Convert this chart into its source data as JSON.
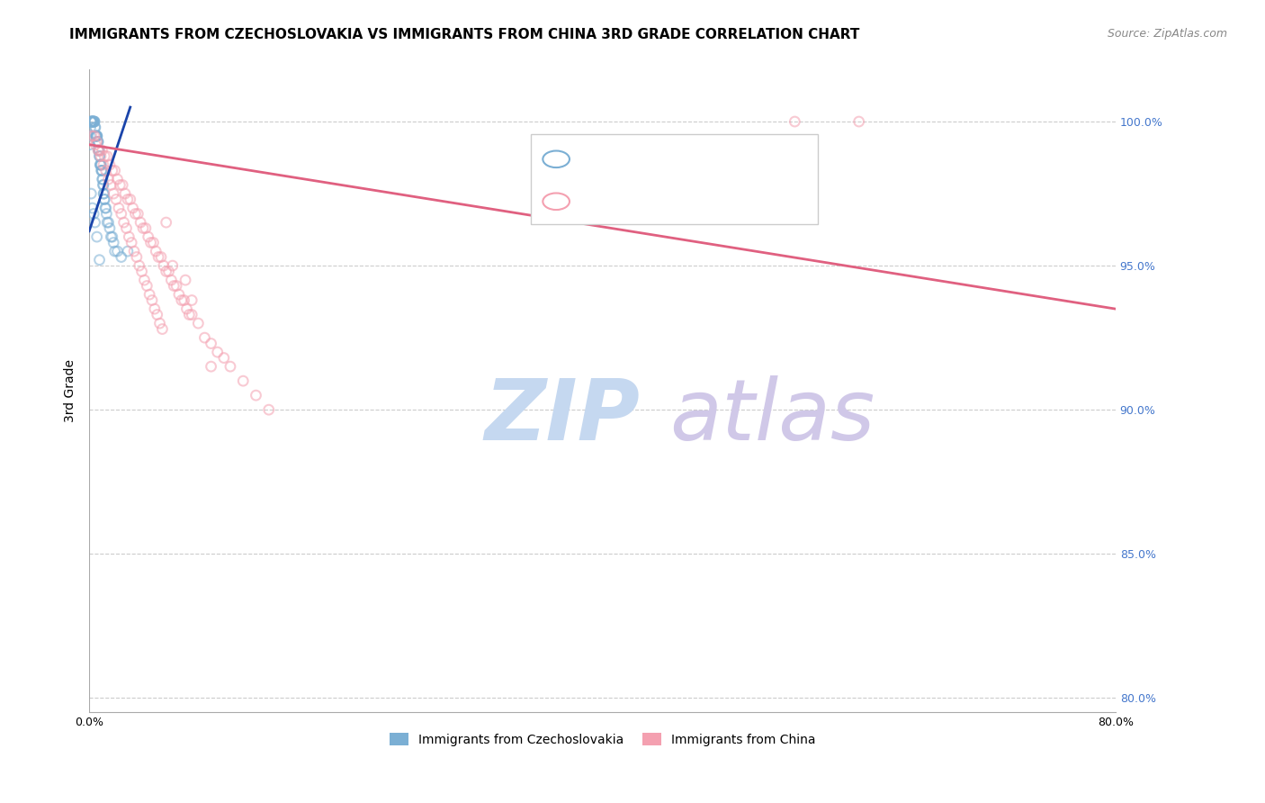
{
  "title": "IMMIGRANTS FROM CZECHOSLOVAKIA VS IMMIGRANTS FROM CHINA 3RD GRADE CORRELATION CHART",
  "source": "Source: ZipAtlas.com",
  "ylabel": "3rd Grade",
  "right_yticks": [
    80.0,
    85.0,
    90.0,
    95.0,
    100.0
  ],
  "xlim": [
    0.0,
    80.0
  ],
  "ylim": [
    79.5,
    101.8
  ],
  "blue_color": "#7bafd4",
  "pink_color": "#f4a0b0",
  "blue_edge_color": "#5599cc",
  "pink_edge_color": "#e87090",
  "blue_line_color": "#1a44aa",
  "pink_line_color": "#e06080",
  "watermark_ZIP": "ZIP",
  "watermark_atlas": "atlas",
  "watermark_color_ZIP": "#c5d8f0",
  "watermark_color_atlas": "#d0c8e8",
  "legend_label1": "Immigrants from Czechoslovakia",
  "legend_label2": "Immigrants from China",
  "blue_scatter_x": [
    0.05,
    0.08,
    0.1,
    0.12,
    0.15,
    0.18,
    0.2,
    0.22,
    0.25,
    0.28,
    0.3,
    0.32,
    0.35,
    0.38,
    0.4,
    0.42,
    0.45,
    0.48,
    0.5,
    0.52,
    0.55,
    0.58,
    0.6,
    0.62,
    0.65,
    0.68,
    0.7,
    0.72,
    0.75,
    0.78,
    0.8,
    0.82,
    0.85,
    0.88,
    0.9,
    0.92,
    0.95,
    0.98,
    1.0,
    1.02,
    1.05,
    1.08,
    1.1,
    1.12,
    1.15,
    1.18,
    1.2,
    1.25,
    1.3,
    1.35,
    1.4,
    1.5,
    1.6,
    1.7,
    1.8,
    1.9,
    2.0,
    2.2,
    2.5,
    3.0,
    0.15,
    0.25,
    0.35,
    0.45,
    0.6,
    0.8
  ],
  "blue_scatter_y": [
    99.2,
    99.5,
    99.8,
    100.0,
    100.0,
    100.0,
    100.0,
    100.0,
    100.0,
    100.0,
    100.0,
    100.0,
    100.0,
    100.0,
    100.0,
    100.0,
    99.8,
    99.8,
    99.5,
    99.5,
    99.5,
    99.5,
    99.5,
    99.5,
    99.3,
    99.3,
    99.3,
    99.0,
    99.0,
    99.0,
    98.8,
    98.8,
    98.5,
    98.5,
    98.5,
    98.5,
    98.3,
    98.3,
    98.3,
    98.0,
    98.0,
    97.8,
    97.8,
    97.5,
    97.5,
    97.3,
    97.3,
    97.0,
    97.0,
    96.8,
    96.5,
    96.5,
    96.3,
    96.0,
    96.0,
    95.8,
    95.5,
    95.5,
    95.3,
    95.5,
    97.5,
    97.0,
    96.8,
    96.5,
    96.0,
    95.2
  ],
  "pink_scatter_x": [
    0.2,
    0.4,
    0.6,
    0.8,
    1.0,
    1.2,
    1.4,
    1.6,
    1.8,
    2.0,
    2.2,
    2.4,
    2.6,
    2.8,
    3.0,
    3.2,
    3.4,
    3.6,
    3.8,
    4.0,
    4.2,
    4.4,
    4.6,
    4.8,
    5.0,
    5.2,
    5.4,
    5.6,
    5.8,
    6.0,
    6.2,
    6.4,
    6.6,
    6.8,
    7.0,
    7.2,
    7.4,
    7.6,
    7.8,
    8.0,
    8.5,
    9.0,
    9.5,
    10.0,
    10.5,
    11.0,
    12.0,
    13.0,
    14.0,
    0.5,
    0.7,
    0.9,
    1.1,
    1.3,
    1.5,
    1.7,
    1.9,
    2.1,
    2.3,
    2.5,
    2.7,
    2.9,
    3.1,
    3.3,
    3.5,
    3.7,
    3.9,
    4.1,
    4.3,
    4.5,
    4.7,
    4.9,
    5.1,
    5.3,
    5.5,
    5.7,
    6.0,
    6.5,
    7.5,
    8.0,
    9.5,
    55.0,
    60.0
  ],
  "pink_scatter_y": [
    99.5,
    99.5,
    99.3,
    99.0,
    99.0,
    98.8,
    98.8,
    98.5,
    98.3,
    98.3,
    98.0,
    97.8,
    97.8,
    97.5,
    97.3,
    97.3,
    97.0,
    96.8,
    96.8,
    96.5,
    96.3,
    96.3,
    96.0,
    95.8,
    95.8,
    95.5,
    95.3,
    95.3,
    95.0,
    94.8,
    94.8,
    94.5,
    94.3,
    94.3,
    94.0,
    93.8,
    93.8,
    93.5,
    93.3,
    93.3,
    93.0,
    92.5,
    92.3,
    92.0,
    91.8,
    91.5,
    91.0,
    90.5,
    90.0,
    99.2,
    99.0,
    98.8,
    98.5,
    98.3,
    98.0,
    97.8,
    97.5,
    97.3,
    97.0,
    96.8,
    96.5,
    96.3,
    96.0,
    95.8,
    95.5,
    95.3,
    95.0,
    94.8,
    94.5,
    94.3,
    94.0,
    93.8,
    93.5,
    93.3,
    93.0,
    92.8,
    96.5,
    95.0,
    94.5,
    93.8,
    91.5,
    100.0,
    100.0
  ],
  "blue_line_x": [
    0.0,
    3.2
  ],
  "blue_line_y": [
    96.2,
    100.5
  ],
  "pink_line_x": [
    0.0,
    80.0
  ],
  "pink_line_y": [
    99.2,
    93.5
  ],
  "title_fontsize": 11,
  "source_fontsize": 9,
  "axis_label_fontsize": 10,
  "tick_fontsize": 9,
  "legend_fontsize": 11,
  "marker_size": 60,
  "marker_alpha": 0.55
}
